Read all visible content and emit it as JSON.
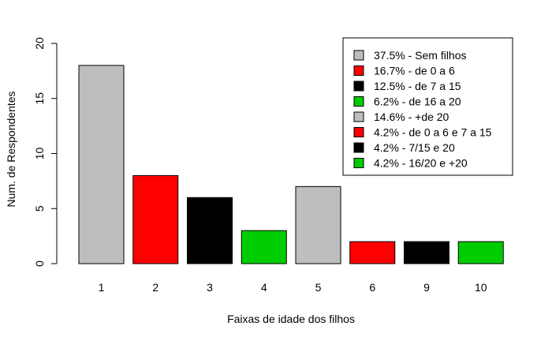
{
  "chart_data": {
    "type": "bar",
    "title": "",
    "xlabel": "Faixas de idade dos filhos",
    "ylabel": "Num. de Respondentes",
    "categories": [
      "1",
      "2",
      "3",
      "4",
      "5",
      "6",
      "9",
      "10"
    ],
    "values": [
      18,
      8,
      6,
      3,
      7,
      2,
      2,
      2
    ],
    "bar_colors": [
      "#bebebe",
      "#ff0000",
      "#000000",
      "#00cd00",
      "#bebebe",
      "#ff0000",
      "#000000",
      "#00cd00"
    ],
    "ylim": [
      0,
      20
    ],
    "yticks": [
      "0",
      "5",
      "10",
      "15",
      "20"
    ],
    "grid": false,
    "legend": {
      "placement": "top-right",
      "entries": [
        {
          "label": "37.5% - Sem filhos",
          "color": "#bebebe"
        },
        {
          "label": "16.7% - de 0 a 6",
          "color": "#ff0000"
        },
        {
          "label": "12.5% - de 7 a 15",
          "color": "#000000"
        },
        {
          "label": "6.2% - de 16 a 20",
          "color": "#00cd00"
        },
        {
          "label": "14.6% - +de 20",
          "color": "#bebebe"
        },
        {
          "label": "4.2% - de 0 a 6 e 7 a 15",
          "color": "#ff0000"
        },
        {
          "label": "4.2% - 7/15 e 20",
          "color": "#000000"
        },
        {
          "label": "4.2% - 16/20 e +20",
          "color": "#00cd00"
        }
      ]
    }
  }
}
